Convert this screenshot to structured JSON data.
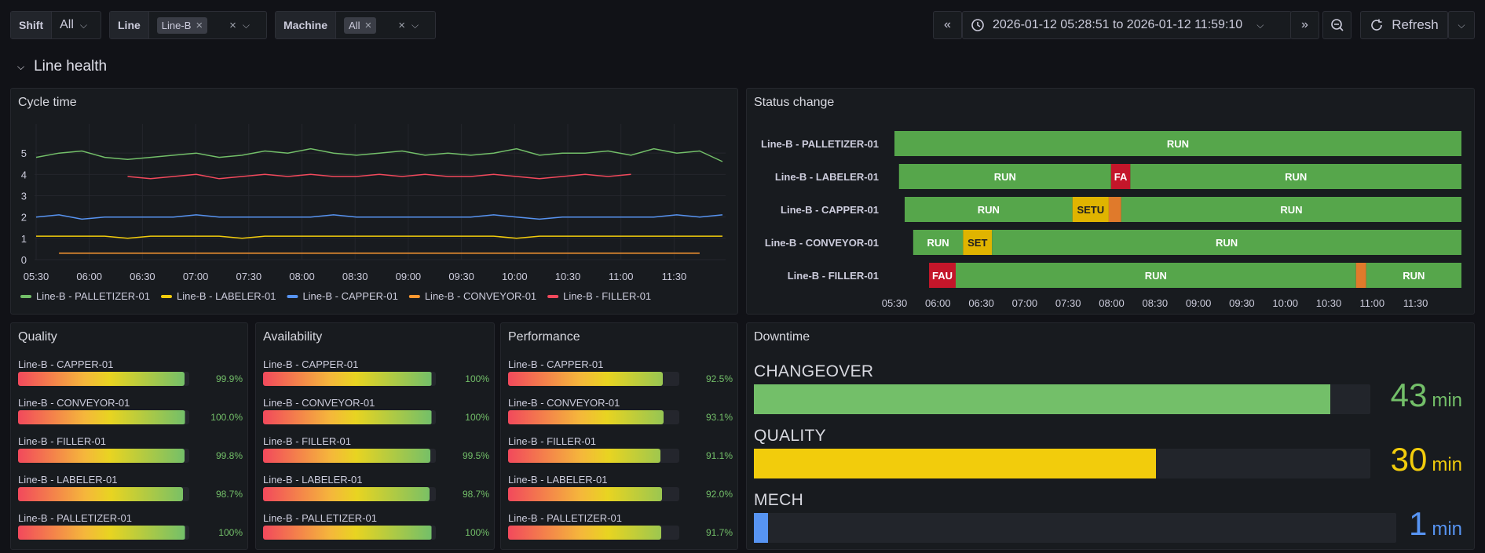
{
  "vars": {
    "shift": {
      "label": "Shift",
      "value": "All"
    },
    "line": {
      "label": "Line",
      "value": "Line-B"
    },
    "machine": {
      "label": "Machine",
      "value": "All"
    }
  },
  "time_range": "2026-01-12 05:28:51 to 2026-01-12 11:59:10",
  "refresh_label": "Refresh",
  "section_title": "Line health",
  "colors": {
    "green": "#73bf69",
    "yellow": "#f2cc0c",
    "blue": "#5794f2",
    "orange": "#ff9830",
    "red": "#f2495c",
    "run": "#56a64b",
    "fault": "#c4162a",
    "setup": "#e0b400"
  },
  "cycle": {
    "title": "Cycle time",
    "chart_data": {
      "type": "line",
      "yticks": [
        "0",
        "1",
        "2",
        "3",
        "4",
        "5"
      ],
      "xticks": [
        "05:30",
        "06:00",
        "06:30",
        "07:00",
        "07:30",
        "08:00",
        "08:30",
        "09:00",
        "09:30",
        "10:00",
        "10:30",
        "11:00",
        "11:30"
      ],
      "ylim": [
        0,
        6
      ],
      "series": [
        {
          "name": "Line-B - PALLETIZER-01",
          "color": "#73bf69",
          "values": [
            4.8,
            5.0,
            5.1,
            4.8,
            4.7,
            4.8,
            4.9,
            5.0,
            4.8,
            4.9,
            5.1,
            5.0,
            5.2,
            5.0,
            4.9,
            5.0,
            5.1,
            4.9,
            5.0,
            4.9,
            5.0,
            5.2,
            4.9,
            5.0,
            5.0,
            5.1,
            4.9,
            5.2,
            5.0,
            5.1,
            4.6
          ]
        },
        {
          "name": "Line-B - LABELER-01",
          "color": "#f2cc0c",
          "values": [
            1.1,
            1.1,
            1.1,
            1.1,
            1.0,
            1.1,
            1.1,
            1.1,
            1.1,
            1.0,
            1.1,
            1.1,
            1.1,
            1.1,
            1.1,
            1.1,
            1.1,
            1.1,
            1.1,
            1.1,
            1.1,
            1.0,
            1.1,
            1.1,
            1.1,
            1.1,
            1.1,
            1.1,
            1.1,
            1.1,
            1.1
          ]
        },
        {
          "name": "Line-B - CAPPER-01",
          "color": "#5794f2",
          "values": [
            2.0,
            2.1,
            1.9,
            2.0,
            2.0,
            2.0,
            2.0,
            2.1,
            2.0,
            2.0,
            2.0,
            2.0,
            2.0,
            2.1,
            2.0,
            2.0,
            2.0,
            2.0,
            2.0,
            2.0,
            2.1,
            2.0,
            1.9,
            2.0,
            2.0,
            2.0,
            2.0,
            2.0,
            2.1,
            2.0,
            2.1
          ]
        },
        {
          "name": "Line-B - CONVEYOR-01",
          "color": "#ff9830",
          "values": [
            null,
            0.3,
            0.3,
            0.3,
            0.3,
            0.3,
            0.3,
            0.3,
            0.3,
            0.3,
            0.3,
            0.3,
            0.3,
            0.3,
            0.3,
            0.3,
            0.3,
            0.3,
            0.3,
            0.3,
            0.3,
            0.3,
            0.3,
            0.3,
            0.3,
            0.3,
            0.3,
            0.3,
            0.3,
            0.3,
            null
          ]
        },
        {
          "name": "Line-B - FILLER-01",
          "color": "#f2495c",
          "values": [
            null,
            null,
            null,
            null,
            3.9,
            3.8,
            3.9,
            4.0,
            3.8,
            3.9,
            4.0,
            3.9,
            4.0,
            3.9,
            3.9,
            4.0,
            3.9,
            4.0,
            3.9,
            3.9,
            4.0,
            3.9,
            3.8,
            3.9,
            4.0,
            3.9,
            4.0,
            null,
            null,
            null,
            null
          ]
        }
      ]
    }
  },
  "status": {
    "title": "Status change",
    "xticks": [
      "05:30",
      "06:00",
      "06:30",
      "07:00",
      "07:30",
      "08:00",
      "08:30",
      "09:00",
      "09:30",
      "10:00",
      "10:30",
      "11:00",
      "11:30"
    ],
    "rows": [
      {
        "name": "Line-B - PALLETIZER-01",
        "segments": [
          {
            "start": 0.0,
            "end": 1.0,
            "state": "run",
            "label": "RUN"
          }
        ]
      },
      {
        "name": "Line-B - LABELER-01",
        "segments": [
          {
            "start": 0.008,
            "end": 0.382,
            "state": "run",
            "label": "RUN"
          },
          {
            "start": 0.382,
            "end": 0.416,
            "state": "fault",
            "label": "FA"
          },
          {
            "start": 0.416,
            "end": 1.0,
            "state": "run",
            "label": "RUN"
          }
        ]
      },
      {
        "name": "Line-B - CAPPER-01",
        "segments": [
          {
            "start": 0.018,
            "end": 0.314,
            "state": "run",
            "label": "RUN"
          },
          {
            "start": 0.314,
            "end": 0.378,
            "state": "setup",
            "label": "SETU"
          },
          {
            "start": 0.378,
            "end": 0.4,
            "state": "minor",
            "label": ""
          },
          {
            "start": 0.4,
            "end": 1.0,
            "state": "run",
            "label": "RUN"
          }
        ]
      },
      {
        "name": "Line-B - CONVEYOR-01",
        "segments": [
          {
            "start": 0.033,
            "end": 0.121,
            "state": "run",
            "label": "RUN"
          },
          {
            "start": 0.121,
            "end": 0.172,
            "state": "setup",
            "label": "SET"
          },
          {
            "start": 0.172,
            "end": 1.0,
            "state": "run",
            "label": "RUN"
          }
        ]
      },
      {
        "name": "Line-B - FILLER-01",
        "segments": [
          {
            "start": 0.061,
            "end": 0.108,
            "state": "fault",
            "label": "FAU"
          },
          {
            "start": 0.108,
            "end": 0.814,
            "state": "run",
            "label": "RUN"
          },
          {
            "start": 0.814,
            "end": 0.832,
            "state": "minor",
            "label": ""
          },
          {
            "start": 0.832,
            "end": 1.0,
            "state": "run",
            "label": "RUN"
          }
        ]
      }
    ]
  },
  "quality": {
    "title": "Quality",
    "items": [
      {
        "name": "Line-B - CAPPER-01",
        "value": 0.999,
        "text": "99.9%"
      },
      {
        "name": "Line-B - CONVEYOR-01",
        "value": 1.0,
        "text": "100.0%"
      },
      {
        "name": "Line-B - FILLER-01",
        "value": 0.998,
        "text": "99.8%"
      },
      {
        "name": "Line-B - LABELER-01",
        "value": 0.987,
        "text": "98.7%"
      },
      {
        "name": "Line-B - PALLETIZER-01",
        "value": 1.0,
        "text": "100%"
      }
    ]
  },
  "availability": {
    "title": "Availability",
    "items": [
      {
        "name": "Line-B - CAPPER-01",
        "value": 1.0,
        "text": "100%"
      },
      {
        "name": "Line-B - CONVEYOR-01",
        "value": 1.0,
        "text": "100%"
      },
      {
        "name": "Line-B - FILLER-01",
        "value": 0.995,
        "text": "99.5%"
      },
      {
        "name": "Line-B - LABELER-01",
        "value": 0.987,
        "text": "98.7%"
      },
      {
        "name": "Line-B - PALLETIZER-01",
        "value": 1.0,
        "text": "100%"
      }
    ]
  },
  "performance": {
    "title": "Performance",
    "items": [
      {
        "name": "Line-B - CAPPER-01",
        "value": 0.925,
        "text": "92.5%"
      },
      {
        "name": "Line-B - CONVEYOR-01",
        "value": 0.931,
        "text": "93.1%"
      },
      {
        "name": "Line-B - FILLER-01",
        "value": 0.911,
        "text": "91.1%"
      },
      {
        "name": "Line-B - LABELER-01",
        "value": 0.92,
        "text": "92.0%"
      },
      {
        "name": "Line-B - PALLETIZER-01",
        "value": 0.917,
        "text": "91.7%"
      }
    ]
  },
  "downtime": {
    "title": "Downtime",
    "max": 46,
    "items": [
      {
        "name": "CHANGEOVER",
        "value": 43,
        "unit": "min",
        "color": "#73bf69"
      },
      {
        "name": "QUALITY",
        "value": 30,
        "unit": "min",
        "color": "#f2cc0c"
      },
      {
        "name": "MECH",
        "value": 1,
        "unit": "min",
        "color": "#5794f2"
      }
    ]
  }
}
